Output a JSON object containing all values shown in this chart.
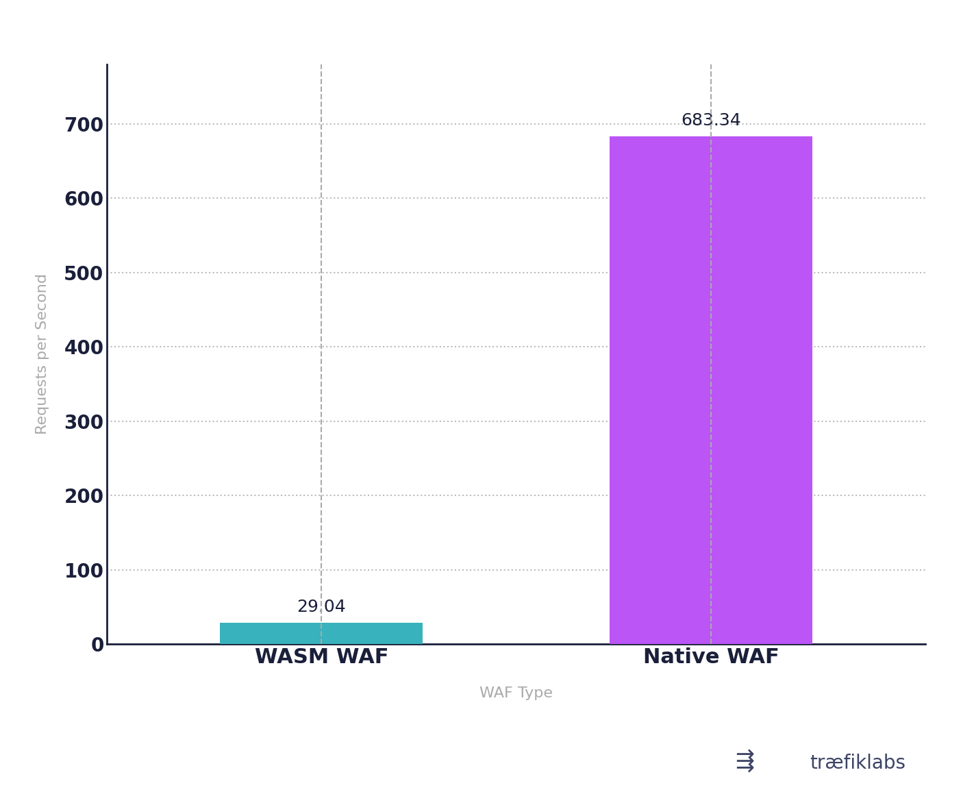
{
  "categories": [
    "WASM WAF",
    "Native WAF"
  ],
  "values": [
    29.04,
    683.34
  ],
  "bar_colors": [
    "#38b2bc",
    "#bb55f5"
  ],
  "bar_width": 0.52,
  "xlabel": "WAF Type",
  "ylabel": "Requests per Second",
  "ylabel_color": "#aaaaaa",
  "xlabel_color": "#aaaaaa",
  "yticks": [
    0,
    100,
    200,
    300,
    400,
    500,
    600,
    700
  ],
  "ylim": [
    0,
    780
  ],
  "ytick_color": "#1a1f3a",
  "ytick_fontweight": "bold",
  "xtick_color": "#1a1f3a",
  "xtick_fontweight": "bold",
  "xtick_fontsize": 22,
  "ytick_fontsize": 20,
  "xlabel_fontsize": 16,
  "ylabel_fontsize": 16,
  "value_label_fontsize": 18,
  "value_label_color": "#1a1f3a",
  "grid_color": "#bbbbbb",
  "grid_linestyle": ":",
  "grid_linewidth": 1.5,
  "background_color": "#ffffff",
  "left_spine_color": "#1a1f3a",
  "bottom_spine_color": "#1a1f3a",
  "logo_color": "#3d4465",
  "logo_fontsize": 20,
  "dashed_line_color": "#aaaaaa",
  "x_positions": [
    0,
    1
  ],
  "xlim": [
    -0.55,
    1.55
  ]
}
